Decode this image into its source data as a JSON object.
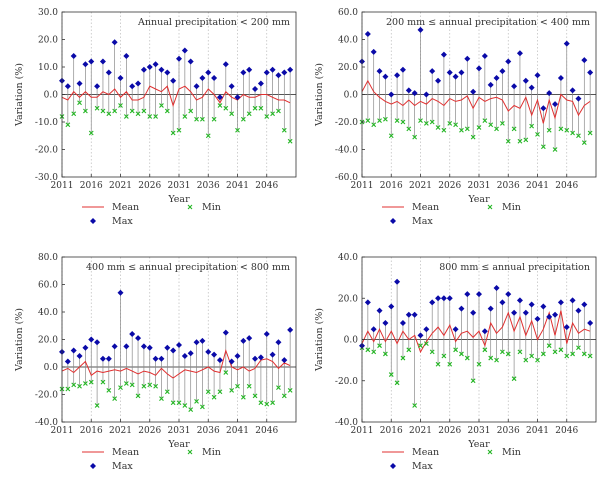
{
  "axes": {
    "y_label": "Variation (%)",
    "x_label": "Year",
    "x_ticks": [
      "2011",
      "2016",
      "2021",
      "2026",
      "2031",
      "2036",
      "2041",
      "2046"
    ]
  },
  "legend": {
    "mean": "Mean",
    "min": "Min",
    "max": "Max"
  },
  "colors": {
    "mean": "#e03030",
    "max": "#0a0aa8",
    "min": "#22b522",
    "stem": "#8a8a8a",
    "zero_line": "#555555",
    "grid": "#bbbbbb"
  },
  "chart_data": [
    {
      "type": "scatter",
      "title": "Annual precipitation < 200 mm",
      "xlabel": "Year",
      "ylabel": "Variation (%)",
      "ylim": [
        -30,
        30
      ],
      "yticks": [
        "30.0",
        "20.0",
        "10.0",
        "0.0",
        "-10.0",
        "-20.0",
        "-30.0"
      ],
      "x": [
        2011,
        2012,
        2013,
        2014,
        2015,
        2016,
        2017,
        2018,
        2019,
        2020,
        2021,
        2022,
        2023,
        2024,
        2025,
        2026,
        2027,
        2028,
        2029,
        2030,
        2031,
        2032,
        2033,
        2034,
        2035,
        2036,
        2037,
        2038,
        2039,
        2040,
        2041,
        2042,
        2043,
        2044,
        2045,
        2046,
        2047,
        2048,
        2049,
        2050
      ],
      "series": [
        {
          "name": "Max",
          "values": [
            5,
            3,
            14,
            4,
            11,
            12,
            3,
            12,
            8,
            19,
            6,
            14,
            3,
            4,
            9,
            10,
            11,
            9,
            8,
            5,
            13,
            16,
            12,
            3,
            6,
            8,
            6,
            -1,
            11,
            3,
            -1,
            8,
            9,
            2,
            4,
            8,
            9,
            7,
            8,
            9
          ]
        },
        {
          "name": "Mean",
          "values": [
            -1,
            -2,
            1,
            -1,
            1,
            -1,
            -1,
            1,
            0,
            2,
            -1,
            1,
            -2,
            -2,
            -1,
            3,
            2,
            1,
            3,
            -4,
            2,
            3,
            1,
            -2,
            -1,
            2,
            0,
            -3,
            1,
            -1,
            -2,
            0,
            -1,
            -1,
            0,
            0,
            -1,
            -2,
            -2,
            -3
          ]
        },
        {
          "name": "Min",
          "values": [
            -8,
            -11,
            -7,
            -3,
            -6,
            -14,
            -5,
            -6,
            -7,
            -6,
            -4,
            -8,
            -6,
            -7,
            -6,
            -8,
            -8,
            -4,
            -6,
            -14,
            -13,
            -8,
            -6,
            -9,
            -9,
            -15,
            -9,
            -4,
            -5,
            -7,
            -13,
            -9,
            -7,
            -5,
            -5,
            -8,
            -7,
            -6,
            -13,
            -17
          ]
        }
      ]
    },
    {
      "type": "scatter",
      "title": "200 mm ≤ annual precipitation < 400 mm",
      "xlabel": "Year",
      "ylabel": "Variation (%)",
      "ylim": [
        -60,
        60
      ],
      "yticks": [
        "60.0",
        "40.0",
        "20.0",
        "0.0",
        "-20.0",
        "-40.0",
        "-60.0"
      ],
      "x": [
        2011,
        2012,
        2013,
        2014,
        2015,
        2016,
        2017,
        2018,
        2019,
        2020,
        2021,
        2022,
        2023,
        2024,
        2025,
        2026,
        2027,
        2028,
        2029,
        2030,
        2031,
        2032,
        2033,
        2034,
        2035,
        2036,
        2037,
        2038,
        2039,
        2040,
        2041,
        2042,
        2043,
        2044,
        2045,
        2046,
        2047,
        2048,
        2049,
        2050
      ],
      "series": [
        {
          "name": "Max",
          "values": [
            24,
            44,
            31,
            17,
            13,
            0,
            14,
            18,
            3,
            1,
            47,
            0,
            17,
            10,
            29,
            16,
            13,
            16,
            26,
            2,
            19,
            28,
            7,
            12,
            17,
            24,
            6,
            30,
            10,
            5,
            14,
            -10,
            1,
            -7,
            12,
            37,
            3,
            -3,
            25,
            16
          ]
        },
        {
          "name": "Mean",
          "values": [
            2,
            10,
            2,
            -2,
            -5,
            -7,
            -5,
            -8,
            -4,
            -8,
            -5,
            -7,
            -3,
            -5,
            -8,
            -3,
            -5,
            -4,
            -1,
            -10,
            -2,
            -5,
            -3,
            -2,
            -4,
            -12,
            -8,
            -10,
            -2,
            -15,
            -4,
            -21,
            -4,
            -17,
            0,
            -4,
            -5,
            -15,
            -8,
            -5
          ]
        },
        {
          "name": "Min",
          "values": [
            -20,
            -19,
            -22,
            -19,
            -18,
            -30,
            -19,
            -20,
            -25,
            -31,
            -19,
            -21,
            -20,
            -24,
            -26,
            -21,
            -22,
            -26,
            -25,
            -31,
            -24,
            -19,
            -22,
            -25,
            -21,
            -34,
            -25,
            -34,
            -33,
            -23,
            -29,
            -38,
            -26,
            -40,
            -25,
            -26,
            -28,
            -30,
            -35,
            -28
          ]
        }
      ]
    },
    {
      "type": "scatter",
      "title": "400 mm ≤ annual precipitation < 800 mm",
      "xlabel": "Year",
      "ylabel": "Variation (%)",
      "ylim": [
        -40,
        80
      ],
      "yticks": [
        "80.0",
        "60.0",
        "40.0",
        "20.0",
        "0.0",
        "-20.0",
        "-40.0"
      ],
      "x": [
        2011,
        2012,
        2013,
        2014,
        2015,
        2016,
        2017,
        2018,
        2019,
        2020,
        2021,
        2022,
        2023,
        2024,
        2025,
        2026,
        2027,
        2028,
        2029,
        2030,
        2031,
        2032,
        2033,
        2034,
        2035,
        2036,
        2037,
        2038,
        2039,
        2040,
        2041,
        2042,
        2043,
        2044,
        2045,
        2046,
        2047,
        2048,
        2049,
        2050
      ],
      "series": [
        {
          "name": "Max",
          "values": [
            11,
            4,
            12,
            8,
            14,
            20,
            18,
            6,
            6,
            15,
            54,
            15,
            24,
            21,
            15,
            14,
            6,
            6,
            14,
            12,
            16,
            8,
            10,
            18,
            19,
            11,
            9,
            5,
            25,
            4,
            8,
            19,
            21,
            6,
            7,
            24,
            9,
            18,
            5,
            27
          ]
        },
        {
          "name": "Mean",
          "values": [
            -3,
            -1,
            -4,
            0,
            4,
            -6,
            -3,
            -4,
            -3,
            -2,
            -3,
            -1,
            -3,
            -5,
            -3,
            -4,
            -6,
            -1,
            -5,
            -8,
            -5,
            -2,
            -3,
            -4,
            -2,
            0,
            -3,
            -4,
            12,
            0,
            -2,
            0,
            -3,
            -1,
            5,
            6,
            4,
            -1,
            3,
            1
          ]
        },
        {
          "name": "Min",
          "values": [
            -16,
            -16,
            -13,
            -14,
            -12,
            -11,
            -28,
            -11,
            -17,
            -23,
            -15,
            -12,
            -13,
            -21,
            -14,
            -13,
            -14,
            -23,
            -18,
            -26,
            -26,
            -28,
            -31,
            -25,
            -29,
            -18,
            -22,
            -18,
            -4,
            -17,
            -14,
            -22,
            -14,
            -21,
            -26,
            -27,
            -26,
            -15,
            -21,
            -17
          ]
        }
      ]
    },
    {
      "type": "scatter",
      "title": "800 mm ≤ annual precipitation",
      "xlabel": "Year",
      "ylabel": "Variation (%)",
      "ylim": [
        -40,
        40
      ],
      "yticks": [
        "40.0",
        "20.0",
        "0.0",
        "-20.0",
        "-40.0"
      ],
      "x": [
        2011,
        2012,
        2013,
        2014,
        2015,
        2016,
        2017,
        2018,
        2019,
        2020,
        2021,
        2022,
        2023,
        2024,
        2025,
        2026,
        2027,
        2028,
        2029,
        2030,
        2031,
        2032,
        2033,
        2034,
        2035,
        2036,
        2037,
        2038,
        2039,
        2040,
        2041,
        2042,
        2043,
        2044,
        2045,
        2046,
        2047,
        2048,
        2049,
        2050
      ],
      "series": [
        {
          "name": "Max",
          "values": [
            -3,
            18,
            5,
            14,
            8,
            16,
            28,
            8,
            12,
            12,
            2,
            5,
            18,
            20,
            20,
            20,
            5,
            15,
            22,
            13,
            22,
            4,
            15,
            25,
            18,
            22,
            13,
            19,
            13,
            17,
            10,
            16,
            11,
            12,
            18,
            6,
            19,
            14,
            17,
            8
          ]
        },
        {
          "name": "Mean",
          "values": [
            -2,
            4,
            -1,
            5,
            -1,
            4,
            -2,
            4,
            0,
            2,
            -6,
            -1,
            3,
            6,
            2,
            7,
            -1,
            3,
            4,
            1,
            4,
            -3,
            8,
            3,
            6,
            13,
            4,
            11,
            2,
            9,
            0,
            5,
            13,
            2,
            14,
            -2,
            8,
            3,
            5,
            4
          ]
        },
        {
          "name": "Min",
          "values": [
            -4,
            -5,
            -6,
            -3,
            -7,
            -17,
            -21,
            -9,
            -5,
            -32,
            -3,
            -2,
            -6,
            -12,
            -8,
            -12,
            -5,
            -7,
            -9,
            -20,
            -12,
            -5,
            -9,
            -10,
            -6,
            -7,
            -19,
            -6,
            -10,
            -8,
            -10,
            -7,
            -3,
            -6,
            -5,
            -8,
            -7,
            -4,
            -7,
            -8
          ]
        }
      ]
    }
  ]
}
